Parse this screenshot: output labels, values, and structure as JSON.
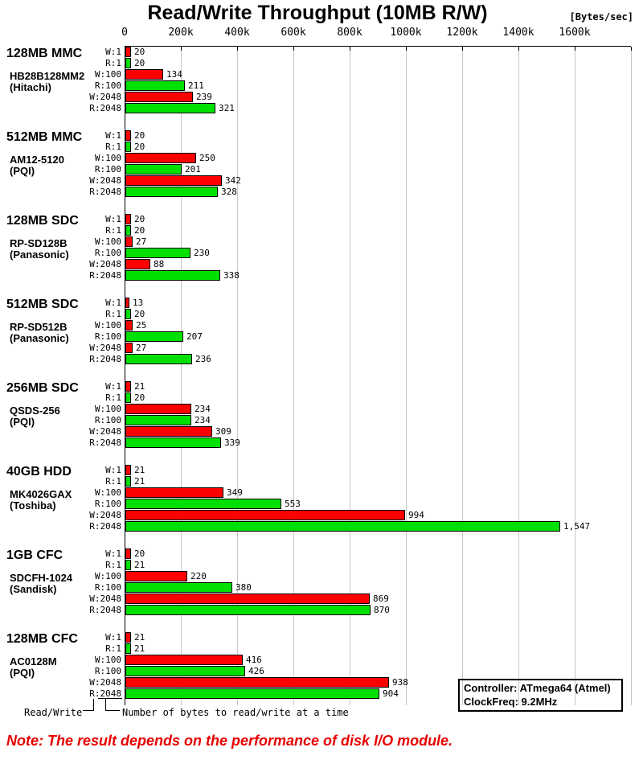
{
  "title": "Read/Write Throughput (10MB R/W)",
  "unit_label": "[Bytes/sec]",
  "footer": {
    "read_write_label": "Read/Write",
    "bytes_label": "Number of bytes to read/write at a time"
  },
  "info_box": {
    "line1": "Controller: ATmega64 (Atmel)",
    "line2": "ClockFreq: 9.2MHz"
  },
  "footnote": "Note: The result depends on the performance of disk I/O module.",
  "colors": {
    "write_bar": "#ff0000",
    "read_bar": "#00e000",
    "gridline": "#c6c6c6",
    "footnote_text": "#e60000",
    "axis": "#000000"
  },
  "chart_data": {
    "type": "bar",
    "orientation": "horizontal",
    "title": "Read/Write Throughput (10MB R/W)",
    "xlabel": "[Bytes/sec]",
    "x_tick_labels": [
      "0",
      "200k",
      "400k",
      "600k",
      "800k",
      "1000k",
      "1200k",
      "1400k",
      "1600k"
    ],
    "x_tick_interval_kbytes": 200,
    "xlim_kbytes": [
      0,
      1800
    ],
    "grid": true,
    "row_labels": [
      "W:1",
      "R:1",
      "W:100",
      "R:100",
      "W:2048",
      "R:2048"
    ],
    "row_types": [
      "write",
      "read",
      "write",
      "read",
      "write",
      "read"
    ],
    "value_unit": "kBytes/sec",
    "groups": [
      {
        "name": "128MB MMC",
        "model": "HB28B128MM2",
        "maker": "(Hitachi)",
        "values_k": [
          20,
          20,
          134,
          211,
          239,
          321
        ]
      },
      {
        "name": "512MB MMC",
        "model": "AM12-5120",
        "maker": "(PQI)",
        "values_k": [
          20,
          20,
          250,
          201,
          342,
          328
        ]
      },
      {
        "name": "128MB SDC",
        "model": "RP-SD128B",
        "maker": "(Panasonic)",
        "values_k": [
          20,
          20,
          27,
          230,
          88,
          338
        ]
      },
      {
        "name": "512MB SDC",
        "model": "RP-SD512B",
        "maker": "(Panasonic)",
        "values_k": [
          13,
          20,
          25,
          207,
          27,
          236
        ]
      },
      {
        "name": "256MB SDC",
        "model": "QSDS-256",
        "maker": "(PQI)",
        "values_k": [
          21,
          20,
          234,
          234,
          309,
          339
        ]
      },
      {
        "name": "40GB HDD",
        "model": "MK4026GAX",
        "maker": "(Toshiba)",
        "values_k": [
          21,
          21,
          349,
          553,
          994,
          1547
        ]
      },
      {
        "name": "1GB CFC",
        "model": "SDCFH-1024",
        "maker": "(Sandisk)",
        "values_k": [
          20,
          21,
          220,
          380,
          869,
          870
        ]
      },
      {
        "name": "128MB CFC",
        "model": "AC0128M",
        "maker": "(PQI)",
        "values_k": [
          21,
          21,
          416,
          426,
          938,
          904
        ]
      }
    ]
  }
}
